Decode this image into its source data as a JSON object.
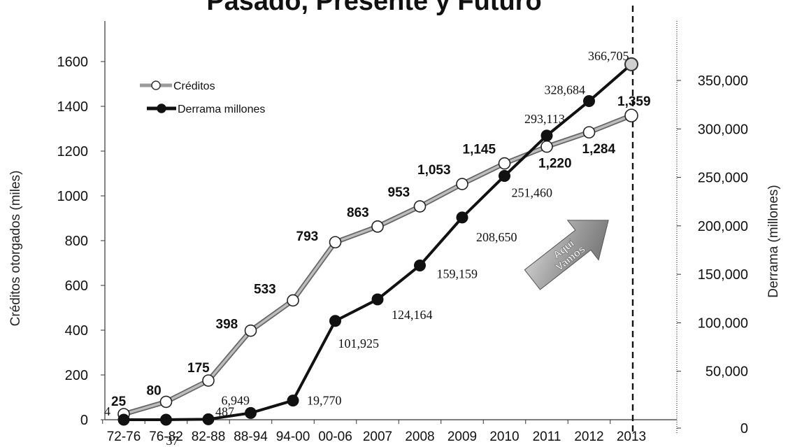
{
  "chart_data": {
    "type": "line",
    "title": "Pasado, Presente y Futuro",
    "categories": [
      "72-76",
      "76-82",
      "82-88",
      "88-94",
      "94-00",
      "00-06",
      "2007",
      "2008",
      "2009",
      "2010",
      "2011",
      "2012",
      "2013"
    ],
    "y_left": {
      "label": "Créditos otorgados (miles)",
      "ticks": [
        "0",
        "200",
        "400",
        "600",
        "800",
        "1000",
        "1200",
        "1400",
        "1600"
      ],
      "range": [
        0,
        1600
      ]
    },
    "y_right": {
      "label": "Derrama (millones)",
      "ticks": [
        "0",
        "50,000",
        "100,000",
        "150,000",
        "200,000",
        "250,000",
        "300,000",
        "350,000"
      ],
      "range": [
        0,
        350000
      ]
    },
    "series": [
      {
        "name": "Créditos",
        "axis": "left",
        "color": "#9a9a9a",
        "marker": "open-circle",
        "values": [
          25,
          80,
          175,
          398,
          533,
          793,
          863,
          953,
          1053,
          1145,
          1220,
          1284,
          1359
        ],
        "labels": [
          "25",
          "80",
          "175",
          "398",
          "533",
          "793",
          "863",
          "953",
          "1,053",
          "1,145",
          "1,220",
          "1,284",
          "1,359"
        ]
      },
      {
        "name": "Derrama millones",
        "axis": "right",
        "color": "#111111",
        "marker": "filled-circle",
        "values": [
          4,
          37,
          487,
          6949,
          19770,
          101925,
          124164,
          159159,
          208650,
          251460,
          293113,
          328684,
          366705
        ],
        "labels": [
          "4",
          "37",
          "487",
          "6,949",
          "19,770",
          "101,925",
          "124,164",
          "159,159",
          "208,650",
          "251,460",
          "293,113",
          "328,684",
          "366,705"
        ]
      }
    ],
    "legend_position": "top-left",
    "annotation": {
      "text_line1": "Aquí",
      "text_line2": "Vamos",
      "shape": "arrow",
      "color": "#8c8c8c"
    },
    "marker_line": {
      "between": [
        "2012",
        "2013"
      ],
      "style": "dashed"
    }
  }
}
